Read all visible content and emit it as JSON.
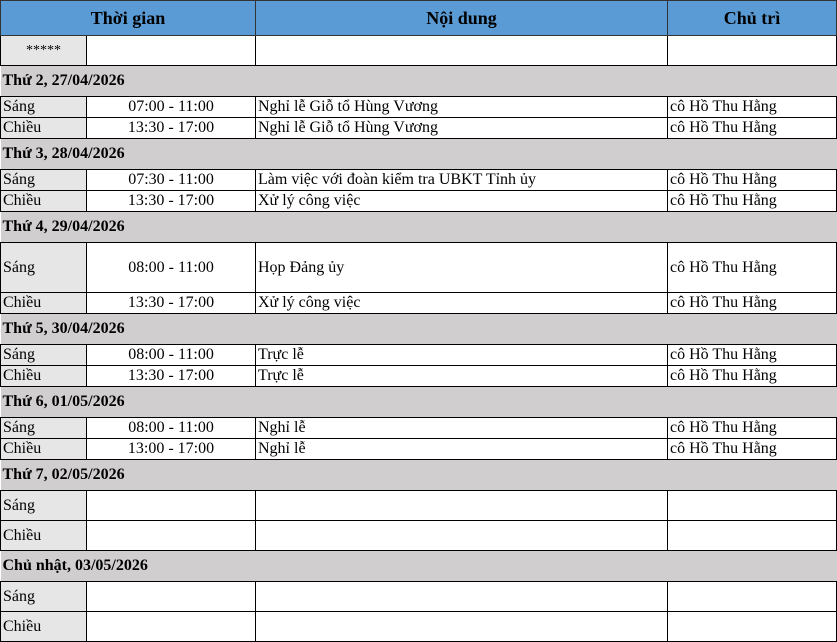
{
  "header": {
    "time": "Thời gian",
    "content": "Nội dung",
    "host": "Chủ trì"
  },
  "stars": "*****",
  "days": [
    {
      "title": "Thứ 2, 27/04/2026",
      "rows": [
        {
          "session": "Sáng",
          "time": "07:00 - 11:00",
          "content": "Nghỉ lễ Giỗ tổ Hùng Vương",
          "host": "cô Hồ Thu Hằng"
        },
        {
          "session": "Chiều",
          "time": "13:30 - 17:00",
          "content": "Nghỉ lễ Giỗ tổ Hùng Vương",
          "host": "cô Hồ Thu Hằng"
        }
      ]
    },
    {
      "title": "Thứ 3, 28/04/2026",
      "rows": [
        {
          "session": "Sáng",
          "time": "07:30 - 11:00",
          "content": "Làm việc với đoàn kiểm tra UBKT Tỉnh ủy",
          "host": "cô Hồ Thu Hằng"
        },
        {
          "session": "Chiều",
          "time": "13:30 - 17:00",
          "content": "Xử lý công việc",
          "host": "cô Hồ Thu Hằng"
        }
      ]
    },
    {
      "title": "Thứ 4, 29/04/2026",
      "rows": [
        {
          "session": "Sáng",
          "time": "08:00 - 11:00",
          "content": "Họp Đảng ủy",
          "host": "cô Hồ Thu Hằng"
        },
        {
          "session": "Chiều",
          "time": "13:30 - 17:00",
          "content": "Xử lý công việc",
          "host": "cô Hồ Thu Hằng"
        }
      ]
    },
    {
      "title": "Thứ 5, 30/04/2026",
      "rows": [
        {
          "session": "Sáng",
          "time": "08:00 - 11:00",
          "content": "Trực lễ",
          "host": "cô Hồ Thu Hằng"
        },
        {
          "session": "Chiều",
          "time": "13:30 - 17:00",
          "content": "Trực lễ",
          "host": "cô Hồ Thu Hằng"
        }
      ]
    },
    {
      "title": "Thứ 6, 01/05/2026",
      "rows": [
        {
          "session": "Sáng",
          "time": "08:00 - 11:00",
          "content": "Nghỉ lễ",
          "host": "cô Hồ Thu Hằng"
        },
        {
          "session": "Chiều",
          "time": "13:00 - 17:00",
          "content": "Nghỉ lễ",
          "host": "cô Hồ Thu Hằng"
        }
      ]
    },
    {
      "title": "Thứ 7, 02/05/2026",
      "rows": [
        {
          "session": "Sáng",
          "time": "",
          "content": "",
          "host": ""
        },
        {
          "session": "Chiều",
          "time": "",
          "content": "",
          "host": ""
        }
      ]
    },
    {
      "title": "Chủ nhật, 03/05/2026",
      "rows": [
        {
          "session": "Sáng",
          "time": "",
          "content": "",
          "host": ""
        },
        {
          "session": "Chiều",
          "time": "",
          "content": "",
          "host": ""
        }
      ]
    }
  ]
}
